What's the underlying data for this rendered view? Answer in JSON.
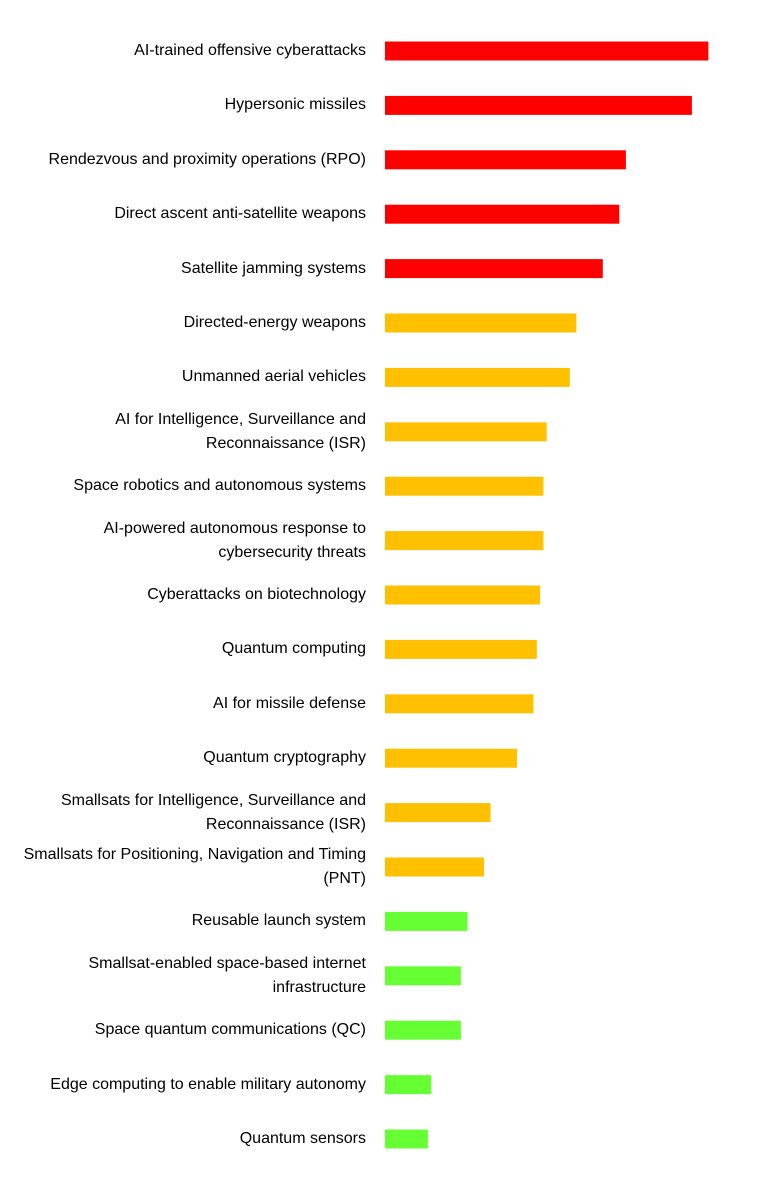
{
  "chart_data": {
    "type": "bar",
    "orientation": "horizontal",
    "categories": [
      "AI-trained offensive cyberattacks",
      "Hypersonic missiles",
      "Rendezvous and proximity operations (RPO)",
      "Direct ascent anti-satellite weapons",
      "Satellite jamming systems",
      "Directed-energy weapons",
      "Unmanned aerial vehicles",
      "AI for Intelligence, Surveillance and Reconnaissance (ISR)",
      "Space robotics and autonomous systems",
      "AI-powered autonomous response to cybersecurity threats",
      "Cyberattacks on biotechnology",
      "Quantum computing",
      "AI for missile defense",
      "Quantum cryptography",
      "Smallsats for Intelligence, Surveillance and Reconnaissance (ISR)",
      "Smallsats for Positioning, Navigation and Timing (PNT)",
      "Reusable launch system",
      "Smallsat-enabled space-based internet infrastructure",
      "Space quantum communications (QC)",
      "Edge computing to enable military autonomy",
      "Quantum sensors"
    ],
    "values": [
      9.8,
      9.3,
      7.3,
      7.1,
      6.6,
      5.8,
      5.6,
      4.9,
      4.8,
      4.8,
      4.7,
      4.6,
      4.5,
      4.0,
      3.2,
      3.0,
      2.5,
      2.3,
      2.3,
      1.4,
      1.3
    ],
    "colors": [
      "#ff0000",
      "#ff0000",
      "#ff0000",
      "#ff0000",
      "#ff0000",
      "#ffc000",
      "#ffc000",
      "#ffc000",
      "#ffc000",
      "#ffc000",
      "#ffc000",
      "#ffc000",
      "#ffc000",
      "#ffc000",
      "#ffc000",
      "#ffc000",
      "#66ff33",
      "#66ff33",
      "#66ff33",
      "#66ff33",
      "#66ff33"
    ],
    "xlim": [
      0,
      10
    ]
  }
}
